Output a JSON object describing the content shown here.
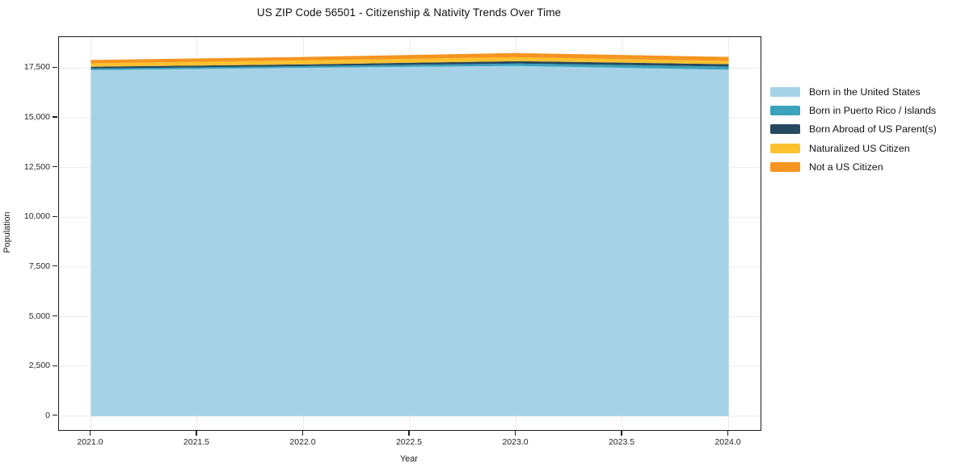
{
  "title": "US ZIP Code 56501 - Citizenship & Nativity Trends Over Time",
  "chart_data": {
    "type": "area",
    "stacked": true,
    "title": "US ZIP Code 56501 - Citizenship & Nativity Trends Over Time",
    "xlabel": "Year",
    "ylabel": "Population",
    "x": [
      2021,
      2022,
      2023,
      2024
    ],
    "series": [
      {
        "name": "Born in the United States",
        "color": "#a6d2e7",
        "values": [
          17400,
          17520,
          17610,
          17420
        ]
      },
      {
        "name": "Born in Puerto Rico / Islands",
        "color": "#3aa2bd",
        "values": [
          80,
          80,
          120,
          160
        ]
      },
      {
        "name": "Born Abroad of US Parent(s)",
        "color": "#25495e",
        "values": [
          90,
          90,
          120,
          120
        ]
      },
      {
        "name": "Naturalized US Citizen",
        "color": "#fcc12d",
        "values": [
          170,
          200,
          200,
          160
        ]
      },
      {
        "name": "Not a US Citizen",
        "color": "#f5941f",
        "values": [
          170,
          170,
          210,
          200
        ]
      }
    ],
    "xticks": [
      2021.0,
      2021.5,
      2022.0,
      2022.5,
      2023.0,
      2023.5,
      2024.0
    ],
    "xtick_labels": [
      "2021.0",
      "2021.5",
      "2022.0",
      "2022.5",
      "2023.0",
      "2023.5",
      "2024.0"
    ],
    "yticks": [
      0,
      2500,
      5000,
      7500,
      10000,
      12500,
      15000,
      17500
    ],
    "ytick_labels": [
      "0",
      "2,500",
      "5,000",
      "7,500",
      "10,000",
      "12,500",
      "15,000",
      "17,500"
    ],
    "xlim": [
      2020.85,
      2024.15
    ],
    "ylim": [
      -700,
      19060
    ],
    "grid": true,
    "gridline_color": "#ebebeb",
    "legend_position": "right-outside"
  }
}
